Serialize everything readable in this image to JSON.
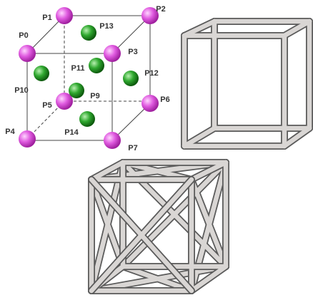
{
  "nodes": [
    {
      "label": "P0"
    },
    {
      "label": "P1"
    },
    {
      "label": "P2"
    },
    {
      "label": "P3"
    },
    {
      "label": "P4"
    },
    {
      "label": "P5"
    },
    {
      "label": "P6"
    },
    {
      "label": "P7"
    },
    {
      "label": "P9"
    },
    {
      "label": "P10"
    },
    {
      "label": "P11"
    },
    {
      "label": "P12"
    },
    {
      "label": "P13"
    },
    {
      "label": "P14"
    }
  ]
}
